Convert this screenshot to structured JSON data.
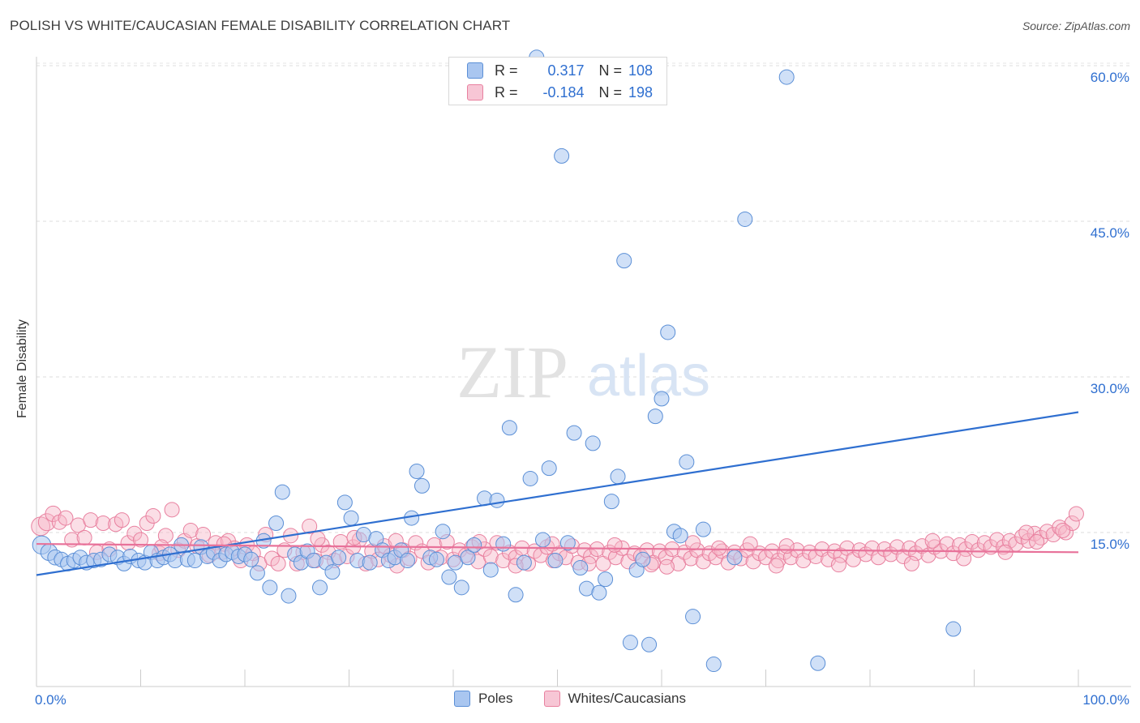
{
  "title": "POLISH VS WHITE/CAUCASIAN FEMALE DISABILITY CORRELATION CHART",
  "source": "Source: ZipAtlas.com",
  "watermark": {
    "zip": "ZIP",
    "atlas": "atlas"
  },
  "colors": {
    "poles": "#a9c6f0",
    "poles_edge": "#5b8fd6",
    "poles_line": "#2f6fd0",
    "whites": "#f7b6c8",
    "whites_edge": "#e8809f",
    "whites_line": "#e8729a",
    "accent_text": "#2f6fd0"
  },
  "legend_stats": [
    {
      "r_label": "R =",
      "r_value": "0.317",
      "n_label": "N =",
      "n_value": "108"
    },
    {
      "r_label": "R =",
      "r_value": "-0.184",
      "n_label": "N =",
      "n_value": "198"
    }
  ],
  "chart_data": {
    "type": "scatter",
    "ylabel": "Female Disability",
    "xlim": [
      0,
      100
    ],
    "ylim": [
      0,
      61
    ],
    "x_tick_labels": [
      "0.0%",
      "100.0%"
    ],
    "y_ticks": [
      15,
      30,
      45,
      60
    ],
    "y_tick_labels": [
      "15.0%",
      "30.0%",
      "45.0%",
      "60.0%"
    ],
    "grid": true,
    "legend_placement": "bottom-center",
    "series": [
      {
        "name": "Poles",
        "trend": {
          "x": [
            0,
            100
          ],
          "y": [
            10.9,
            26.6
          ]
        },
        "points": [
          [
            0.5,
            13.8
          ],
          [
            1.2,
            13.1
          ],
          [
            1.8,
            12.6
          ],
          [
            2.4,
            12.4
          ],
          [
            3.0,
            12.0
          ],
          [
            3.6,
            12.3
          ],
          [
            4.2,
            12.6
          ],
          [
            4.8,
            12.1
          ],
          [
            5.5,
            12.3
          ],
          [
            6.2,
            12.4
          ],
          [
            7.0,
            12.9
          ],
          [
            7.8,
            12.6
          ],
          [
            8.4,
            12.0
          ],
          [
            9.0,
            12.7
          ],
          [
            9.8,
            12.3
          ],
          [
            10.4,
            12.1
          ],
          [
            11.0,
            13.1
          ],
          [
            11.6,
            12.3
          ],
          [
            12.2,
            12.6
          ],
          [
            12.8,
            12.9
          ],
          [
            13.3,
            12.3
          ],
          [
            13.9,
            13.8
          ],
          [
            14.5,
            12.4
          ],
          [
            15.2,
            12.3
          ],
          [
            15.8,
            13.6
          ],
          [
            16.4,
            12.7
          ],
          [
            17.0,
            13.1
          ],
          [
            17.6,
            12.3
          ],
          [
            18.2,
            12.9
          ],
          [
            18.8,
            13.1
          ],
          [
            19.4,
            12.7
          ],
          [
            20.0,
            12.9
          ],
          [
            20.6,
            12.4
          ],
          [
            21.2,
            11.1
          ],
          [
            21.8,
            14.2
          ],
          [
            22.4,
            9.7
          ],
          [
            23.0,
            15.9
          ],
          [
            23.6,
            18.9
          ],
          [
            24.2,
            8.9
          ],
          [
            24.8,
            12.9
          ],
          [
            25.4,
            12.1
          ],
          [
            26.0,
            13.2
          ],
          [
            26.6,
            12.3
          ],
          [
            27.2,
            9.7
          ],
          [
            27.8,
            12.1
          ],
          [
            28.4,
            11.2
          ],
          [
            29.0,
            12.6
          ],
          [
            29.6,
            17.9
          ],
          [
            30.2,
            16.4
          ],
          [
            30.8,
            12.3
          ],
          [
            31.4,
            14.8
          ],
          [
            32.0,
            12.1
          ],
          [
            32.6,
            14.4
          ],
          [
            33.2,
            13.3
          ],
          [
            33.8,
            12.3
          ],
          [
            34.4,
            12.6
          ],
          [
            35.0,
            13.3
          ],
          [
            35.6,
            12.3
          ],
          [
            36.0,
            16.4
          ],
          [
            36.5,
            20.9
          ],
          [
            37.0,
            19.5
          ],
          [
            37.8,
            12.6
          ],
          [
            38.4,
            12.4
          ],
          [
            39.0,
            15.1
          ],
          [
            39.6,
            10.7
          ],
          [
            40.2,
            12.1
          ],
          [
            40.8,
            9.7
          ],
          [
            41.4,
            12.6
          ],
          [
            42.0,
            13.8
          ],
          [
            43.0,
            18.3
          ],
          [
            43.6,
            11.4
          ],
          [
            44.2,
            18.1
          ],
          [
            44.8,
            13.9
          ],
          [
            45.4,
            25.1
          ],
          [
            46.0,
            9.0
          ],
          [
            46.8,
            12.1
          ],
          [
            47.4,
            20.2
          ],
          [
            48.0,
            60.8
          ],
          [
            48.6,
            14.3
          ],
          [
            49.2,
            21.2
          ],
          [
            49.8,
            12.3
          ],
          [
            50.4,
            51.3
          ],
          [
            51.0,
            14.0
          ],
          [
            51.6,
            24.6
          ],
          [
            52.2,
            11.6
          ],
          [
            52.8,
            9.6
          ],
          [
            53.4,
            23.6
          ],
          [
            54.0,
            9.2
          ],
          [
            54.6,
            10.5
          ],
          [
            55.2,
            18.0
          ],
          [
            55.8,
            20.4
          ],
          [
            56.4,
            41.2
          ],
          [
            57.0,
            4.4
          ],
          [
            57.6,
            11.4
          ],
          [
            58.2,
            12.4
          ],
          [
            58.8,
            4.2
          ],
          [
            59.4,
            26.2
          ],
          [
            60.0,
            27.9
          ],
          [
            60.6,
            34.3
          ],
          [
            61.2,
            15.1
          ],
          [
            61.8,
            14.7
          ],
          [
            62.4,
            21.8
          ],
          [
            63.0,
            6.9
          ],
          [
            64.0,
            15.3
          ],
          [
            65.0,
            2.3
          ],
          [
            67.0,
            12.6
          ],
          [
            68.0,
            45.2
          ],
          [
            72.0,
            58.9
          ],
          [
            75.0,
            2.4
          ],
          [
            88.0,
            5.7
          ]
        ]
      },
      {
        "name": "Whites/Caucasians",
        "trend": {
          "x": [
            0,
            100
          ],
          "y": [
            13.9,
            13.1
          ]
        },
        "points": [
          [
            0.4,
            15.6
          ],
          [
            1.0,
            16.0
          ],
          [
            1.6,
            16.8
          ],
          [
            2.2,
            16.0
          ],
          [
            2.8,
            16.4
          ],
          [
            3.4,
            14.3
          ],
          [
            4.0,
            15.7
          ],
          [
            4.6,
            14.5
          ],
          [
            5.2,
            16.2
          ],
          [
            5.8,
            13.1
          ],
          [
            6.4,
            15.9
          ],
          [
            7.0,
            13.4
          ],
          [
            7.6,
            15.8
          ],
          [
            8.2,
            16.2
          ],
          [
            8.8,
            14.0
          ],
          [
            9.4,
            14.9
          ],
          [
            10.0,
            14.3
          ],
          [
            10.6,
            15.9
          ],
          [
            11.2,
            16.6
          ],
          [
            11.8,
            13.0
          ],
          [
            12.4,
            14.7
          ],
          [
            13.0,
            17.2
          ],
          [
            13.6,
            13.3
          ],
          [
            14.2,
            14.2
          ],
          [
            14.8,
            15.2
          ],
          [
            15.4,
            13.7
          ],
          [
            16.0,
            14.8
          ],
          [
            16.6,
            12.8
          ],
          [
            17.2,
            14.0
          ],
          [
            17.8,
            13.1
          ],
          [
            18.4,
            14.2
          ],
          [
            19.0,
            13.5
          ],
          [
            19.6,
            12.3
          ],
          [
            20.2,
            13.8
          ],
          [
            20.8,
            13.0
          ],
          [
            21.4,
            12.0
          ],
          [
            22.0,
            14.8
          ],
          [
            22.6,
            12.5
          ],
          [
            23.2,
            12.0
          ],
          [
            23.8,
            13.3
          ],
          [
            24.4,
            14.7
          ],
          [
            25.0,
            12.0
          ],
          [
            25.6,
            13.1
          ],
          [
            26.2,
            15.6
          ],
          [
            26.8,
            12.3
          ],
          [
            27.4,
            13.8
          ],
          [
            28.0,
            13.1
          ],
          [
            28.6,
            12.3
          ],
          [
            29.2,
            14.1
          ],
          [
            29.8,
            12.7
          ],
          [
            30.4,
            13.6
          ],
          [
            31.0,
            14.3
          ],
          [
            31.6,
            12.0
          ],
          [
            32.2,
            13.2
          ],
          [
            32.8,
            12.4
          ],
          [
            33.4,
            13.7
          ],
          [
            34.0,
            12.8
          ],
          [
            34.6,
            11.8
          ],
          [
            35.2,
            13.3
          ],
          [
            35.8,
            12.5
          ],
          [
            36.4,
            14.0
          ],
          [
            37.0,
            13.2
          ],
          [
            37.6,
            12.1
          ],
          [
            38.2,
            13.8
          ],
          [
            38.8,
            12.6
          ],
          [
            39.4,
            14.1
          ],
          [
            40.0,
            12.4
          ],
          [
            40.6,
            13.3
          ],
          [
            41.2,
            12.8
          ],
          [
            41.8,
            13.6
          ],
          [
            42.4,
            12.2
          ],
          [
            43.0,
            13.4
          ],
          [
            43.6,
            12.7
          ],
          [
            44.2,
            14.0
          ],
          [
            44.8,
            12.3
          ],
          [
            45.4,
            13.1
          ],
          [
            46.0,
            12.6
          ],
          [
            46.6,
            13.5
          ],
          [
            47.2,
            12.0
          ],
          [
            47.8,
            13.2
          ],
          [
            48.4,
            12.8
          ],
          [
            49.0,
            13.6
          ],
          [
            49.6,
            12.3
          ],
          [
            50.2,
            13.0
          ],
          [
            50.8,
            12.6
          ],
          [
            51.4,
            13.7
          ],
          [
            52.0,
            12.1
          ],
          [
            52.6,
            13.3
          ],
          [
            53.2,
            12.7
          ],
          [
            53.8,
            13.4
          ],
          [
            54.4,
            12.0
          ],
          [
            55.0,
            13.1
          ],
          [
            55.6,
            12.6
          ],
          [
            56.2,
            13.5
          ],
          [
            56.8,
            12.2
          ],
          [
            57.4,
            13.0
          ],
          [
            58.0,
            12.7
          ],
          [
            58.6,
            13.3
          ],
          [
            59.2,
            12.1
          ],
          [
            59.8,
            13.2
          ],
          [
            60.4,
            12.6
          ],
          [
            61.0,
            13.4
          ],
          [
            61.6,
            12.0
          ],
          [
            62.2,
            13.1
          ],
          [
            62.8,
            12.5
          ],
          [
            63.4,
            13.3
          ],
          [
            64.0,
            12.2
          ],
          [
            64.6,
            13.0
          ],
          [
            65.2,
            12.6
          ],
          [
            65.8,
            13.2
          ],
          [
            66.4,
            12.1
          ],
          [
            67.0,
            13.1
          ],
          [
            67.6,
            12.5
          ],
          [
            68.2,
            13.3
          ],
          [
            68.8,
            12.2
          ],
          [
            69.4,
            13.0
          ],
          [
            70.0,
            12.6
          ],
          [
            70.6,
            13.2
          ],
          [
            71.2,
            12.3
          ],
          [
            71.8,
            13.1
          ],
          [
            72.4,
            12.6
          ],
          [
            73.0,
            13.3
          ],
          [
            73.6,
            12.3
          ],
          [
            74.2,
            13.1
          ],
          [
            74.8,
            12.7
          ],
          [
            75.4,
            13.4
          ],
          [
            76.0,
            12.4
          ],
          [
            76.6,
            13.2
          ],
          [
            77.2,
            12.8
          ],
          [
            77.8,
            13.5
          ],
          [
            78.4,
            12.4
          ],
          [
            79.0,
            13.3
          ],
          [
            79.6,
            12.9
          ],
          [
            80.2,
            13.5
          ],
          [
            80.8,
            12.6
          ],
          [
            81.4,
            13.4
          ],
          [
            82.0,
            12.9
          ],
          [
            82.6,
            13.6
          ],
          [
            83.2,
            12.7
          ],
          [
            83.8,
            13.5
          ],
          [
            84.4,
            13.0
          ],
          [
            85.0,
            13.7
          ],
          [
            85.6,
            12.8
          ],
          [
            86.2,
            13.6
          ],
          [
            86.8,
            13.2
          ],
          [
            87.4,
            13.9
          ],
          [
            88.0,
            13.0
          ],
          [
            88.6,
            13.8
          ],
          [
            89.2,
            13.4
          ],
          [
            89.8,
            14.1
          ],
          [
            90.4,
            13.3
          ],
          [
            91.0,
            14.0
          ],
          [
            91.6,
            13.6
          ],
          [
            92.2,
            14.3
          ],
          [
            92.8,
            13.6
          ],
          [
            93.4,
            14.2
          ],
          [
            94.0,
            13.9
          ],
          [
            94.6,
            14.6
          ],
          [
            95.2,
            14.2
          ],
          [
            95.8,
            14.9
          ],
          [
            96.4,
            14.5
          ],
          [
            97.0,
            15.1
          ],
          [
            97.6,
            14.8
          ],
          [
            98.2,
            15.5
          ],
          [
            98.8,
            15.0
          ],
          [
            99.4,
            15.9
          ],
          [
            99.8,
            16.8
          ],
          [
            12.0,
            13.6
          ],
          [
            18.0,
            13.9
          ],
          [
            27.0,
            14.4
          ],
          [
            34.5,
            14.2
          ],
          [
            42.5,
            14.1
          ],
          [
            49.5,
            13.9
          ],
          [
            55.5,
            13.8
          ],
          [
            63.0,
            14.0
          ],
          [
            68.5,
            13.9
          ],
          [
            65.5,
            13.5
          ],
          [
            72.0,
            13.7
          ],
          [
            86.0,
            14.2
          ],
          [
            95.0,
            15.0
          ],
          [
            98.5,
            15.2
          ],
          [
            30.5,
            14.5
          ],
          [
            59.0,
            11.9
          ],
          [
            46.0,
            11.8
          ],
          [
            53.0,
            12.0
          ],
          [
            60.5,
            11.7
          ],
          [
            71.0,
            11.8
          ],
          [
            77.0,
            11.9
          ],
          [
            84.0,
            12.0
          ],
          [
            89.0,
            12.5
          ],
          [
            93.0,
            13.1
          ],
          [
            96.0,
            14.1
          ]
        ]
      }
    ]
  }
}
